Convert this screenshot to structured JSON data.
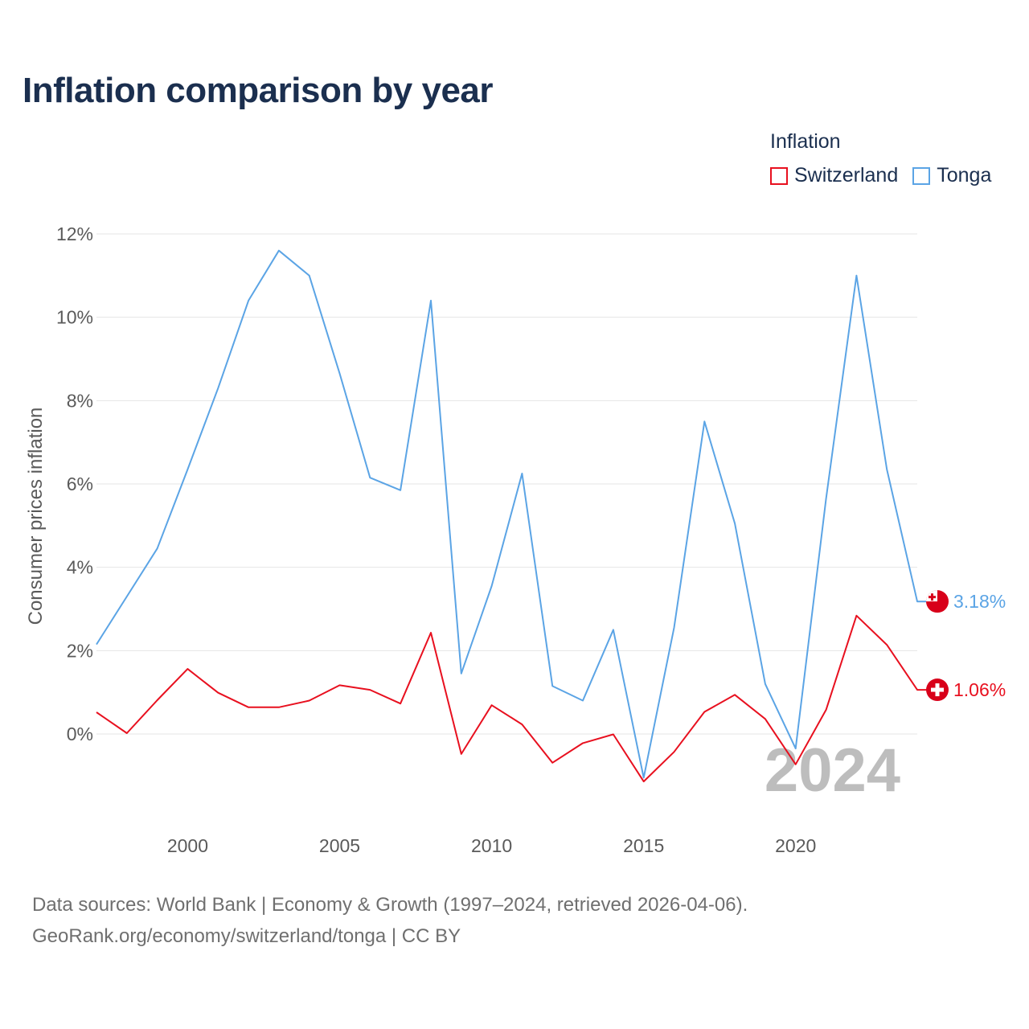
{
  "title": "Inflation comparison by year",
  "legend": {
    "title": "Inflation",
    "items": [
      {
        "label": "Switzerland",
        "color": "#e8101f"
      },
      {
        "label": "Tonga",
        "color": "#5ba4e5"
      }
    ]
  },
  "source": {
    "line1": "Data sources: World Bank | Economy & Growth (1997–2024, retrieved 2026-04-06).",
    "line2": "GeoRank.org/economy/switzerland/tonga | CC BY"
  },
  "chart_data": {
    "type": "line",
    "ylabel": "Consumer prices inflation",
    "xlabel": "",
    "xlim": [
      1997,
      2024
    ],
    "ylim": [
      -2,
      12
    ],
    "x_ticks": [
      2000,
      2005,
      2010,
      2015,
      2020
    ],
    "y_ticks": [
      0,
      2,
      4,
      6,
      8,
      10,
      12
    ],
    "y_tick_labels": [
      "0%",
      "2%",
      "4%",
      "6%",
      "8%",
      "10%",
      "12%"
    ],
    "watermark_year": "2024",
    "x": [
      1997,
      1998,
      1999,
      2000,
      2001,
      2002,
      2003,
      2004,
      2005,
      2006,
      2007,
      2008,
      2009,
      2010,
      2011,
      2012,
      2013,
      2014,
      2015,
      2016,
      2017,
      2018,
      2019,
      2020,
      2021,
      2022,
      2023,
      2024
    ],
    "series": [
      {
        "name": "Tonga",
        "color": "#5ba4e5",
        "end_label": "3.18%",
        "values": [
          2.15,
          3.3,
          4.45,
          6.35,
          8.3,
          10.4,
          11.6,
          11.0,
          8.65,
          6.15,
          5.85,
          10.4,
          1.45,
          3.55,
          6.25,
          1.15,
          0.8,
          2.5,
          -1.05,
          2.55,
          7.5,
          5.05,
          1.2,
          -0.35,
          5.65,
          11.0,
          6.35,
          3.18
        ]
      },
      {
        "name": "Switzerland",
        "color": "#e8101f",
        "end_label": "1.06%",
        "values": [
          0.52,
          0.02,
          0.81,
          1.56,
          0.99,
          0.64,
          0.64,
          0.8,
          1.17,
          1.06,
          0.73,
          2.43,
          -0.48,
          0.69,
          0.23,
          -0.69,
          -0.22,
          -0.01,
          -1.14,
          -0.43,
          0.53,
          0.94,
          0.36,
          -0.73,
          0.58,
          2.84,
          2.14,
          1.06
        ]
      }
    ]
  }
}
